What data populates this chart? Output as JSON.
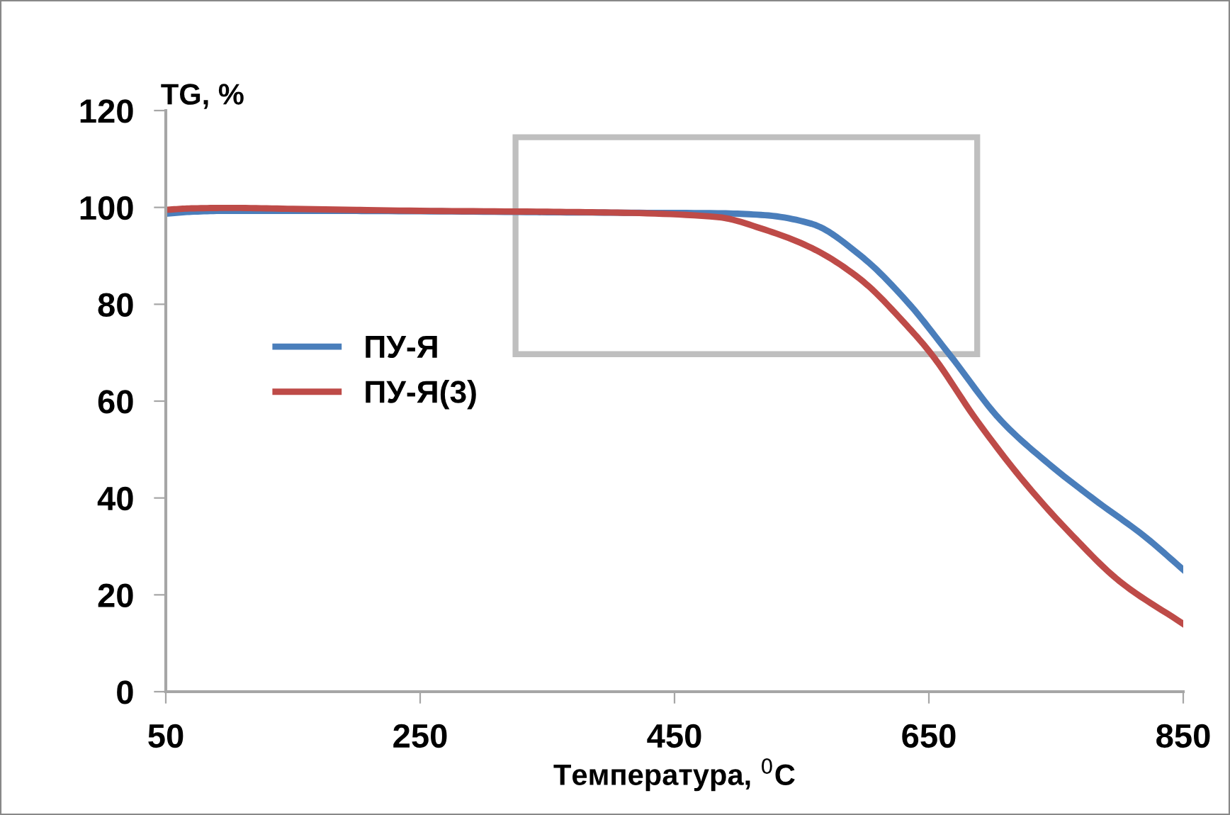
{
  "chart_data": {
    "type": "line",
    "ylabel": "TG, %",
    "xlabel": "Температура, $^{0}$C",
    "xlim": [
      50,
      850
    ],
    "xticks": [
      50,
      250,
      450,
      650,
      850
    ],
    "ylim": [
      0,
      120
    ],
    "yticks": [
      0,
      20,
      40,
      60,
      80,
      100,
      120
    ],
    "grid": false,
    "legend": "center left",
    "marker": "none",
    "line_style": "solid",
    "series": [
      {
        "name": "ПУ-Я",
        "color": "#4a7ebb",
        "x": [
          50,
          70,
          100,
          150,
          250,
          350,
          410,
          484,
          521,
          558,
          596,
          633,
          666,
          707,
          744,
          781,
          819,
          850
        ],
        "values": [
          98.7,
          99.1,
          99.3,
          99.3,
          99.2,
          99.0,
          98.9,
          98.8,
          98.4,
          96.6,
          90.1,
          80.5,
          69.7,
          55.9,
          47.1,
          39.5,
          32.2,
          25.2
        ]
      },
      {
        "name": "ПУ-Я(3)",
        "color": "#be4b48",
        "x": [
          50,
          70,
          100,
          150,
          250,
          350,
          410,
          484,
          521,
          558,
          596,
          633,
          652,
          688,
          725,
          763,
          800,
          850
        ],
        "values": [
          99.5,
          99.8,
          99.9,
          99.7,
          99.3,
          99.1,
          98.9,
          98.0,
          95.4,
          91.6,
          85.2,
          75.5,
          69.7,
          55.9,
          43.3,
          32.2,
          22.8,
          14.0
        ]
      }
    ]
  }
}
